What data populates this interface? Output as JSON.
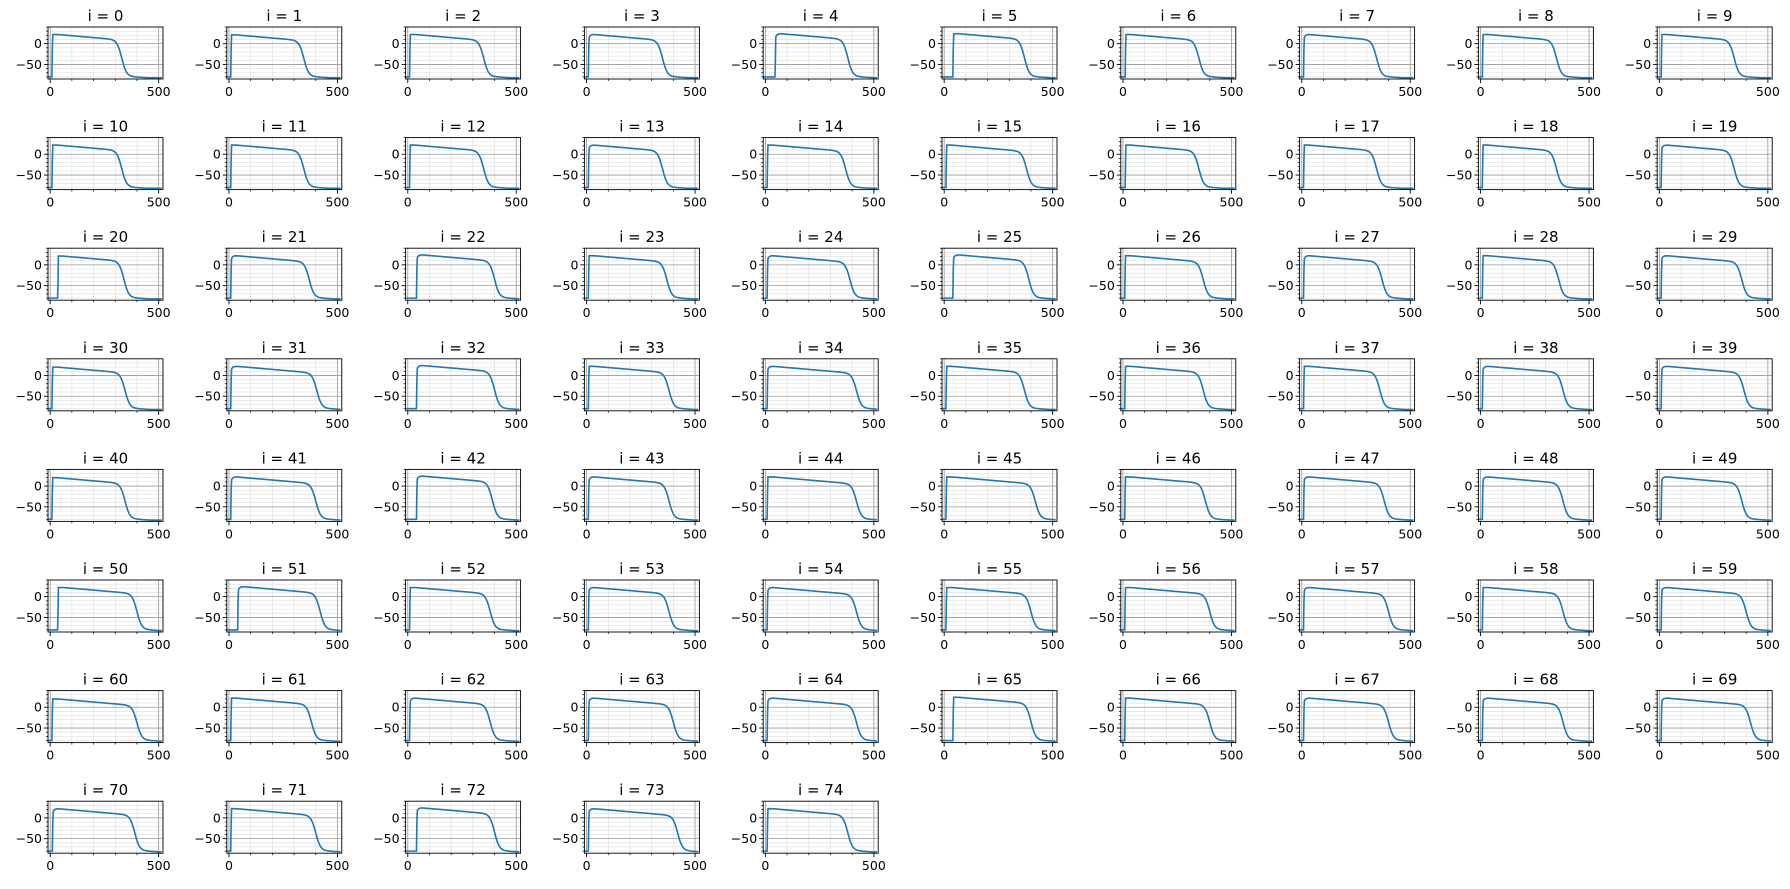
{
  "figure": {
    "line_color": "#1f77b4",
    "grid_major_color": "#9a9a9a",
    "grid_minor_color": "#dedede"
  },
  "chart_data": {
    "type": "line",
    "description_note": "",
    "shared_axes": {
      "xlim": [
        -10,
        520
      ],
      "ylim": [
        -85,
        40
      ],
      "xticks": [
        0,
        500
      ],
      "yticks": [
        0,
        -50
      ],
      "grid": "major and minor",
      "legend": "none"
    },
    "panels": [
      {
        "title": "i = 0",
        "t_up": 8,
        "repol_t": 330,
        "peak": 22,
        "notch": false
      },
      {
        "title": "i = 1",
        "t_up": 8,
        "repol_t": 345,
        "peak": 21,
        "notch": false
      },
      {
        "title": "i = 2",
        "t_up": 8,
        "repol_t": 350,
        "peak": 22,
        "notch": false
      },
      {
        "title": "i = 3",
        "t_up": 8,
        "repol_t": 350,
        "peak": 22,
        "notch": true
      },
      {
        "title": "i = 4",
        "t_up": 45,
        "repol_t": 380,
        "peak": 24,
        "notch": true
      },
      {
        "title": "i = 5",
        "t_up": 40,
        "repol_t": 370,
        "peak": 24,
        "notch": false
      },
      {
        "title": "i = 6",
        "t_up": 10,
        "repol_t": 350,
        "peak": 22,
        "notch": false
      },
      {
        "title": "i = 7",
        "t_up": 8,
        "repol_t": 345,
        "peak": 22,
        "notch": true
      },
      {
        "title": "i = 8",
        "t_up": 8,
        "repol_t": 350,
        "peak": 22,
        "notch": false
      },
      {
        "title": "i = 9",
        "t_up": 8,
        "repol_t": 345,
        "peak": 22,
        "notch": false
      },
      {
        "title": "i = 10",
        "t_up": 8,
        "repol_t": 330,
        "peak": 22,
        "notch": false
      },
      {
        "title": "i = 11",
        "t_up": 8,
        "repol_t": 345,
        "peak": 22,
        "notch": false
      },
      {
        "title": "i = 12",
        "t_up": 8,
        "repol_t": 350,
        "peak": 22,
        "notch": false
      },
      {
        "title": "i = 13",
        "t_up": 8,
        "repol_t": 350,
        "peak": 22,
        "notch": true
      },
      {
        "title": "i = 14",
        "t_up": 8,
        "repol_t": 370,
        "peak": 22,
        "notch": false
      },
      {
        "title": "i = 15",
        "t_up": 8,
        "repol_t": 380,
        "peak": 22,
        "notch": false
      },
      {
        "title": "i = 16",
        "t_up": 10,
        "repol_t": 350,
        "peak": 22,
        "notch": false
      },
      {
        "title": "i = 17",
        "t_up": 8,
        "repol_t": 345,
        "peak": 22,
        "notch": false
      },
      {
        "title": "i = 18",
        "t_up": 8,
        "repol_t": 350,
        "peak": 22,
        "notch": false
      },
      {
        "title": "i = 19",
        "t_up": 8,
        "repol_t": 345,
        "peak": 22,
        "notch": true
      },
      {
        "title": "i = 20",
        "t_up": 35,
        "repol_t": 340,
        "peak": 21,
        "notch": false
      },
      {
        "title": "i = 21",
        "t_up": 8,
        "repol_t": 370,
        "peak": 22,
        "notch": true
      },
      {
        "title": "i = 22",
        "t_up": 40,
        "repol_t": 400,
        "peak": 24,
        "notch": true
      },
      {
        "title": "i = 23",
        "t_up": 8,
        "repol_t": 370,
        "peak": 22,
        "notch": false
      },
      {
        "title": "i = 24",
        "t_up": 8,
        "repol_t": 390,
        "peak": 22,
        "notch": true
      },
      {
        "title": "i = 25",
        "t_up": 40,
        "repol_t": 390,
        "peak": 24,
        "notch": true
      },
      {
        "title": "i = 26",
        "t_up": 8,
        "repol_t": 370,
        "peak": 22,
        "notch": false
      },
      {
        "title": "i = 27",
        "t_up": 8,
        "repol_t": 370,
        "peak": 22,
        "notch": true
      },
      {
        "title": "i = 28",
        "t_up": 8,
        "repol_t": 360,
        "peak": 22,
        "notch": false
      },
      {
        "title": "i = 29",
        "t_up": 8,
        "repol_t": 380,
        "peak": 22,
        "notch": true
      },
      {
        "title": "i = 30",
        "t_up": 8,
        "repol_t": 345,
        "peak": 20,
        "notch": false
      },
      {
        "title": "i = 31",
        "t_up": 8,
        "repol_t": 405,
        "peak": 22,
        "notch": true
      },
      {
        "title": "i = 32",
        "t_up": 40,
        "repol_t": 400,
        "peak": 24,
        "notch": true
      },
      {
        "title": "i = 33",
        "t_up": 8,
        "repol_t": 380,
        "peak": 22,
        "notch": false
      },
      {
        "title": "i = 34",
        "t_up": 8,
        "repol_t": 420,
        "peak": 22,
        "notch": true
      },
      {
        "title": "i = 35",
        "t_up": 8,
        "repol_t": 370,
        "peak": 22,
        "notch": false
      },
      {
        "title": "i = 36",
        "t_up": 8,
        "repol_t": 370,
        "peak": 22,
        "notch": false
      },
      {
        "title": "i = 37",
        "t_up": 8,
        "repol_t": 360,
        "peak": 22,
        "notch": false
      },
      {
        "title": "i = 38",
        "t_up": 8,
        "repol_t": 380,
        "peak": 22,
        "notch": true
      },
      {
        "title": "i = 39",
        "t_up": 8,
        "repol_t": 390,
        "peak": 22,
        "notch": true
      },
      {
        "title": "i = 40",
        "t_up": 8,
        "repol_t": 345,
        "peak": 20,
        "notch": false
      },
      {
        "title": "i = 41",
        "t_up": 8,
        "repol_t": 400,
        "peak": 22,
        "notch": true
      },
      {
        "title": "i = 42",
        "t_up": 40,
        "repol_t": 390,
        "peak": 24,
        "notch": true
      },
      {
        "title": "i = 43",
        "t_up": 8,
        "repol_t": 380,
        "peak": 22,
        "notch": true
      },
      {
        "title": "i = 44",
        "t_up": 8,
        "repol_t": 420,
        "peak": 22,
        "notch": false
      },
      {
        "title": "i = 45",
        "t_up": 8,
        "repol_t": 420,
        "peak": 22,
        "notch": false
      },
      {
        "title": "i = 46",
        "t_up": 8,
        "repol_t": 380,
        "peak": 22,
        "notch": false
      },
      {
        "title": "i = 47",
        "t_up": 8,
        "repol_t": 380,
        "peak": 22,
        "notch": true
      },
      {
        "title": "i = 48",
        "t_up": 8,
        "repol_t": 380,
        "peak": 22,
        "notch": true
      },
      {
        "title": "i = 49",
        "t_up": 8,
        "repol_t": 380,
        "peak": 22,
        "notch": true
      },
      {
        "title": "i = 50",
        "t_up": 35,
        "repol_t": 400,
        "peak": 22,
        "notch": false
      },
      {
        "title": "i = 51",
        "t_up": 40,
        "repol_t": 420,
        "peak": 24,
        "notch": true
      },
      {
        "title": "i = 52",
        "t_up": 8,
        "repol_t": 380,
        "peak": 22,
        "notch": false
      },
      {
        "title": "i = 53",
        "t_up": 8,
        "repol_t": 380,
        "peak": 22,
        "notch": true
      },
      {
        "title": "i = 54",
        "t_up": 8,
        "repol_t": 420,
        "peak": 22,
        "notch": true
      },
      {
        "title": "i = 55",
        "t_up": 8,
        "repol_t": 400,
        "peak": 22,
        "notch": false
      },
      {
        "title": "i = 56",
        "t_up": 8,
        "repol_t": 400,
        "peak": 22,
        "notch": false
      },
      {
        "title": "i = 57",
        "t_up": 8,
        "repol_t": 400,
        "peak": 22,
        "notch": true
      },
      {
        "title": "i = 58",
        "t_up": 8,
        "repol_t": 380,
        "peak": 22,
        "notch": false
      },
      {
        "title": "i = 59",
        "t_up": 8,
        "repol_t": 400,
        "peak": 22,
        "notch": true
      },
      {
        "title": "i = 60",
        "t_up": 8,
        "repol_t": 400,
        "peak": 20,
        "notch": false
      },
      {
        "title": "i = 61",
        "t_up": 8,
        "repol_t": 380,
        "peak": 22,
        "notch": false
      },
      {
        "title": "i = 62",
        "t_up": 8,
        "repol_t": 380,
        "peak": 22,
        "notch": true
      },
      {
        "title": "i = 63",
        "t_up": 8,
        "repol_t": 400,
        "peak": 22,
        "notch": true
      },
      {
        "title": "i = 64",
        "t_up": 8,
        "repol_t": 420,
        "peak": 22,
        "notch": true
      },
      {
        "title": "i = 65",
        "t_up": 40,
        "repol_t": 400,
        "peak": 24,
        "notch": false
      },
      {
        "title": "i = 66",
        "t_up": 8,
        "repol_t": 400,
        "peak": 22,
        "notch": false
      },
      {
        "title": "i = 67",
        "t_up": 8,
        "repol_t": 400,
        "peak": 22,
        "notch": true
      },
      {
        "title": "i = 68",
        "t_up": 8,
        "repol_t": 380,
        "peak": 22,
        "notch": true
      },
      {
        "title": "i = 69",
        "t_up": 8,
        "repol_t": 420,
        "peak": 22,
        "notch": true
      },
      {
        "title": "i = 70",
        "t_up": 10,
        "repol_t": 390,
        "peak": 22,
        "notch": true
      },
      {
        "title": "i = 71",
        "t_up": 8,
        "repol_t": 400,
        "peak": 22,
        "notch": false
      },
      {
        "title": "i = 72",
        "t_up": 40,
        "repol_t": 400,
        "peak": 24,
        "notch": true
      },
      {
        "title": "i = 73",
        "t_up": 8,
        "repol_t": 420,
        "peak": 22,
        "notch": true
      },
      {
        "title": "i = 74",
        "t_up": 8,
        "repol_t": 380,
        "peak": 22,
        "notch": false
      }
    ]
  }
}
